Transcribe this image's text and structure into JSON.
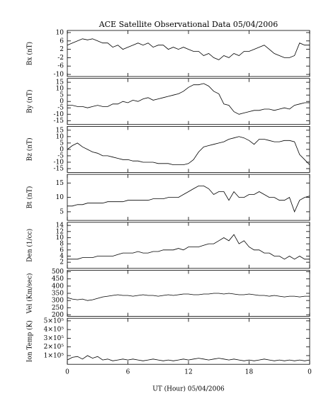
{
  "chart_data": {
    "type": "line",
    "title": "ACE Satellite Observational Data   05/04/2006",
    "x_label": "UT (Hour)   05/04/2006",
    "xlim": [
      0,
      24
    ],
    "xticks": [
      0,
      6,
      12,
      18,
      {
        "value": 24,
        "label": "0"
      }
    ],
    "x": [
      0,
      0.5,
      1,
      1.5,
      2,
      2.5,
      3,
      3.5,
      4,
      4.5,
      5,
      5.5,
      6,
      6.5,
      7,
      7.5,
      8,
      8.5,
      9,
      9.5,
      10,
      10.5,
      11,
      11.5,
      12,
      12.5,
      13,
      13.5,
      14,
      14.5,
      15,
      15.5,
      16,
      16.5,
      17,
      17.5,
      18,
      18.5,
      19,
      19.5,
      20,
      20.5,
      21,
      21.5,
      22,
      22.5,
      23,
      23.5,
      24
    ],
    "panels": [
      {
        "ylabel": "Bx (nT)",
        "color": "#000000",
        "ylim": [
          -11,
          11
        ],
        "yticks": [
          10,
          6,
          2,
          -2,
          -6,
          -10
        ],
        "values": [
          4,
          5,
          6,
          7,
          6.5,
          7,
          6,
          5,
          5,
          3,
          4,
          2,
          3,
          4,
          5,
          4,
          5,
          3,
          4,
          4,
          2,
          3,
          2,
          3,
          2,
          1,
          1,
          -1,
          0,
          -2,
          -3,
          -1,
          -2,
          0,
          -1,
          1,
          1,
          2,
          3,
          4,
          2,
          0,
          -1,
          -2,
          -2,
          -1,
          5,
          4,
          4
        ]
      },
      {
        "ylabel": "By (nT)",
        "color": "#000000",
        "ylim": [
          -18,
          18
        ],
        "yticks": [
          15,
          10,
          5,
          0,
          -5,
          -10,
          -15
        ],
        "values": [
          -3,
          -3,
          -4,
          -4,
          -5,
          -4,
          -3,
          -4,
          -4,
          -2,
          -2,
          0,
          -1,
          1,
          0,
          2,
          3,
          1,
          2,
          3,
          4,
          5,
          6,
          8,
          11,
          13,
          13,
          14,
          12,
          8,
          6,
          -2,
          -3,
          -8,
          -10,
          -9,
          -8,
          -7,
          -7,
          -6,
          -6,
          -7,
          -6,
          -5,
          -6,
          -3,
          -2,
          -1,
          -1
        ]
      },
      {
        "ylabel": "Bz (nT)",
        "color": "#000000",
        "ylim": [
          -18,
          18
        ],
        "yticks": [
          15,
          10,
          5,
          0,
          -5,
          -10,
          -15
        ],
        "values": [
          0,
          3,
          5,
          2,
          0,
          -2,
          -3,
          -5,
          -5,
          -6,
          -7,
          -8,
          -8,
          -9,
          -9,
          -10,
          -10,
          -10,
          -11,
          -11,
          -11,
          -12,
          -12,
          -12,
          -11,
          -8,
          -2,
          2,
          3,
          4,
          5,
          6,
          8,
          9,
          10,
          9,
          7,
          4,
          8,
          8,
          7,
          6,
          6,
          7,
          7,
          6,
          -4,
          -8,
          -12
        ]
      },
      {
        "ylabel": "Bt (nT)",
        "color": "#000000",
        "ylim": [
          2,
          18
        ],
        "yticks": [
          15,
          10,
          5
        ],
        "values": [
          7,
          7,
          7.5,
          7.5,
          8,
          8,
          8,
          8,
          8.5,
          8.5,
          8.5,
          8.5,
          9,
          9,
          9,
          9,
          9,
          9.5,
          9.5,
          9.5,
          10,
          10,
          10,
          11,
          12,
          13,
          14,
          14,
          13,
          11,
          12,
          12,
          9,
          12,
          10,
          10,
          11,
          11,
          12,
          11,
          10,
          10,
          9,
          9,
          10,
          5,
          9,
          10,
          10.5
        ]
      },
      {
        "ylabel": "Den (1/cc)",
        "color": "#000000",
        "ylim": [
          0,
          15
        ],
        "yticks": [
          14,
          12,
          10,
          8,
          6,
          4,
          2
        ],
        "values": [
          3,
          3,
          3,
          3.5,
          3.5,
          3.5,
          4,
          4,
          4,
          4,
          4.5,
          5,
          5,
          5,
          5.5,
          5,
          5,
          5.5,
          5.5,
          6,
          6,
          6,
          6.5,
          6,
          7,
          7,
          7,
          7.5,
          8,
          8,
          9,
          10,
          9,
          11,
          8,
          9,
          7,
          6,
          6,
          5,
          5,
          4,
          4,
          3,
          4,
          3,
          4,
          3,
          3
        ]
      },
      {
        "ylabel": "Vel (Km/sec)",
        "color": "#000000",
        "ylim": [
          190,
          510
        ],
        "yticks": [
          500,
          450,
          400,
          350,
          300,
          250,
          200
        ],
        "values": [
          320,
          310,
          305,
          310,
          300,
          305,
          315,
          325,
          330,
          335,
          340,
          335,
          335,
          330,
          335,
          340,
          335,
          335,
          330,
          335,
          340,
          335,
          340,
          345,
          345,
          340,
          340,
          345,
          345,
          350,
          350,
          345,
          350,
          345,
          340,
          340,
          345,
          340,
          335,
          335,
          330,
          335,
          330,
          325,
          330,
          330,
          325,
          330,
          330
        ]
      },
      {
        "ylabel": "Ion Temp (K)",
        "color": "#000000",
        "ylim": [
          0,
          530000
        ],
        "yticks": [
          {
            "value": 500000,
            "label": "5×10⁵"
          },
          {
            "value": 400000,
            "label": "4×10⁵"
          },
          {
            "value": 300000,
            "label": "3×10⁵"
          },
          {
            "value": 200000,
            "label": "2×10⁵"
          },
          {
            "value": 100000,
            "label": "1×10⁵"
          }
        ],
        "values": [
          50000,
          80000,
          90000,
          60000,
          100000,
          70000,
          90000,
          50000,
          60000,
          40000,
          50000,
          60000,
          50000,
          60000,
          50000,
          40000,
          50000,
          60000,
          50000,
          40000,
          50000,
          40000,
          50000,
          60000,
          50000,
          60000,
          70000,
          60000,
          50000,
          60000,
          70000,
          60000,
          50000,
          60000,
          50000,
          40000,
          50000,
          40000,
          50000,
          60000,
          50000,
          40000,
          50000,
          40000,
          50000,
          40000,
          50000,
          40000,
          50000
        ]
      }
    ]
  }
}
